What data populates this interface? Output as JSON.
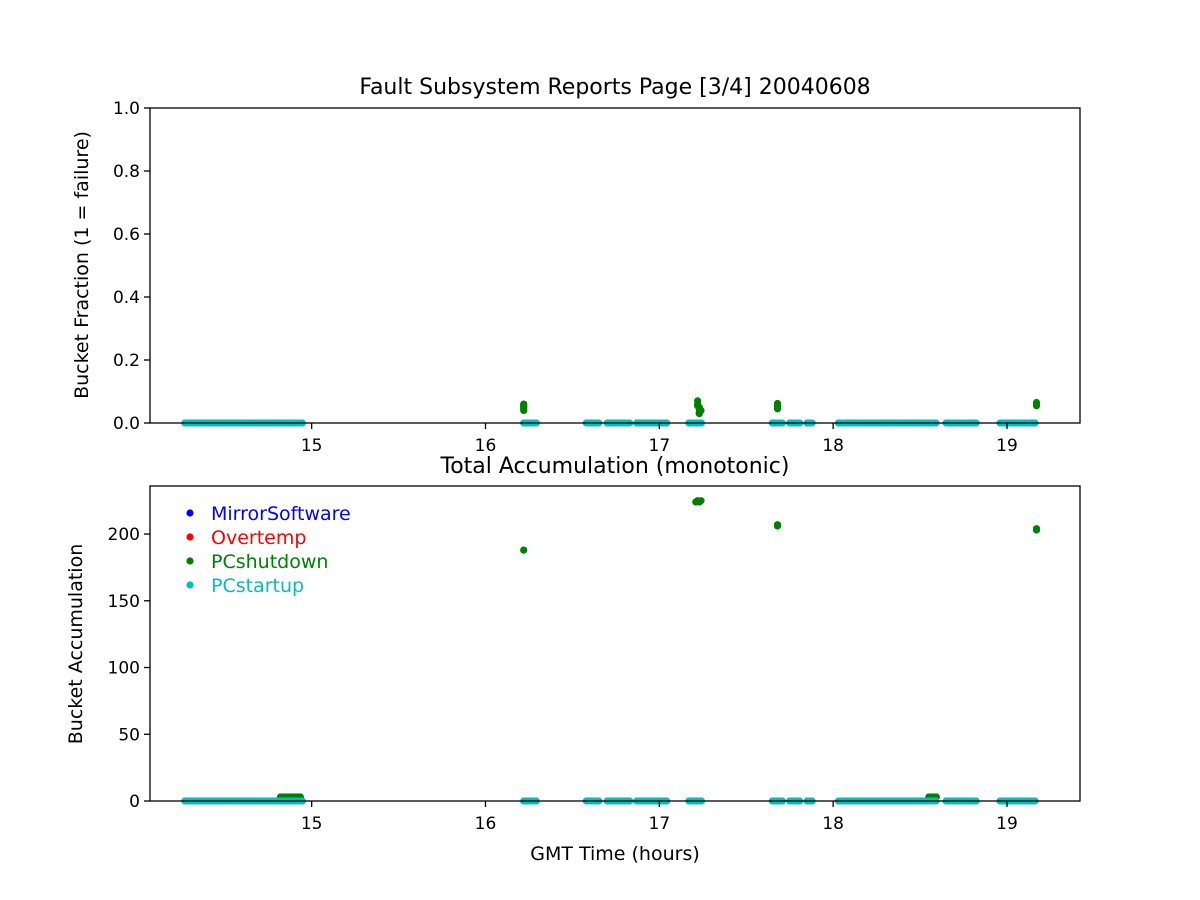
{
  "colors": {
    "MirrorSoftware": "#0000ff",
    "Overtemp": "#ff0000",
    "PCshutdown": "#008000",
    "PCstartup": "#00bfbf"
  },
  "chart_data": [
    {
      "type": "scatter",
      "title": "Fault Subsystem Reports Page [3/4] 20040608",
      "xlabel": "",
      "ylabel": "Bucket Fraction (1 = failure)",
      "xlim": [
        14.07,
        19.42
      ],
      "ylim": [
        0.0,
        1.0
      ],
      "xticks": [
        "15",
        "16",
        "17",
        "18",
        "19"
      ],
      "xtick_values": [
        15,
        16,
        17,
        18,
        19
      ],
      "yticks": [
        "0.0",
        "0.2",
        "0.4",
        "0.6",
        "0.8",
        "1.0"
      ],
      "ytick_values": [
        0.0,
        0.2,
        0.4,
        0.6,
        0.8,
        1.0
      ],
      "legend": [],
      "series": [
        {
          "name": "PCshutdown",
          "color": "#008000",
          "x": [
            16.22,
            16.22,
            16.22,
            16.22,
            16.22,
            17.22,
            17.22,
            17.22,
            17.23,
            17.23,
            17.23,
            17.23,
            17.24,
            17.68,
            17.68,
            17.68,
            17.68,
            19.17,
            19.17,
            19.17
          ],
          "y": [
            0.045,
            0.05,
            0.055,
            0.06,
            0.04,
            0.07,
            0.06,
            0.055,
            0.05,
            0.045,
            0.035,
            0.03,
            0.04,
            0.062,
            0.055,
            0.05,
            0.045,
            0.065,
            0.06,
            0.055
          ]
        },
        {
          "name": "PCstartup",
          "color": "#00bfbf",
          "segments": [
            [
              14.27,
              14.95
            ],
            [
              16.22,
              16.3
            ],
            [
              16.58,
              16.66
            ],
            [
              16.7,
              16.84
            ],
            [
              16.87,
              17.05
            ],
            [
              17.17,
              17.25
            ],
            [
              17.65,
              17.72
            ],
            [
              17.75,
              17.82
            ],
            [
              17.85,
              17.88
            ],
            [
              18.03,
              18.6
            ],
            [
              18.65,
              18.83
            ],
            [
              18.96,
              19.17
            ]
          ],
          "value": 0.0
        }
      ]
    },
    {
      "type": "scatter",
      "title": "Total Accumulation (monotonic)",
      "xlabel": "GMT Time (hours)",
      "ylabel": "Bucket Accumulation",
      "xlim": [
        14.07,
        19.42
      ],
      "ylim": [
        0,
        236
      ],
      "xticks": [
        "15",
        "16",
        "17",
        "18",
        "19"
      ],
      "xtick_values": [
        15,
        16,
        17,
        18,
        19
      ],
      "yticks": [
        "0",
        "50",
        "100",
        "150",
        "200"
      ],
      "ytick_values": [
        0,
        50,
        100,
        150,
        200
      ],
      "legend_position": "upper-left",
      "legend": [
        "MirrorSoftware",
        "Overtemp",
        "PCshutdown",
        "PCstartup"
      ],
      "series": [
        {
          "name": "PCshutdown",
          "color": "#008000",
          "x": [
            16.22,
            17.21,
            17.22,
            17.23,
            17.24,
            17.68,
            17.68,
            19.17,
            19.17
          ],
          "y": [
            188,
            224,
            225,
            224,
            225,
            207,
            206,
            203,
            204
          ],
          "segments_low": [
            [
              14.82,
              14.94
            ],
            [
              18.55,
              18.6
            ]
          ],
          "value_low": 3
        },
        {
          "name": "PCstartup",
          "color": "#00bfbf",
          "segments": [
            [
              14.27,
              14.95
            ],
            [
              16.22,
              16.3
            ],
            [
              16.58,
              16.66
            ],
            [
              16.7,
              16.84
            ],
            [
              16.87,
              17.05
            ],
            [
              17.17,
              17.25
            ],
            [
              17.65,
              17.72
            ],
            [
              17.75,
              17.82
            ],
            [
              17.85,
              17.88
            ],
            [
              18.03,
              18.6
            ],
            [
              18.65,
              18.83
            ],
            [
              18.96,
              19.17
            ]
          ],
          "value": 0
        }
      ]
    }
  ]
}
